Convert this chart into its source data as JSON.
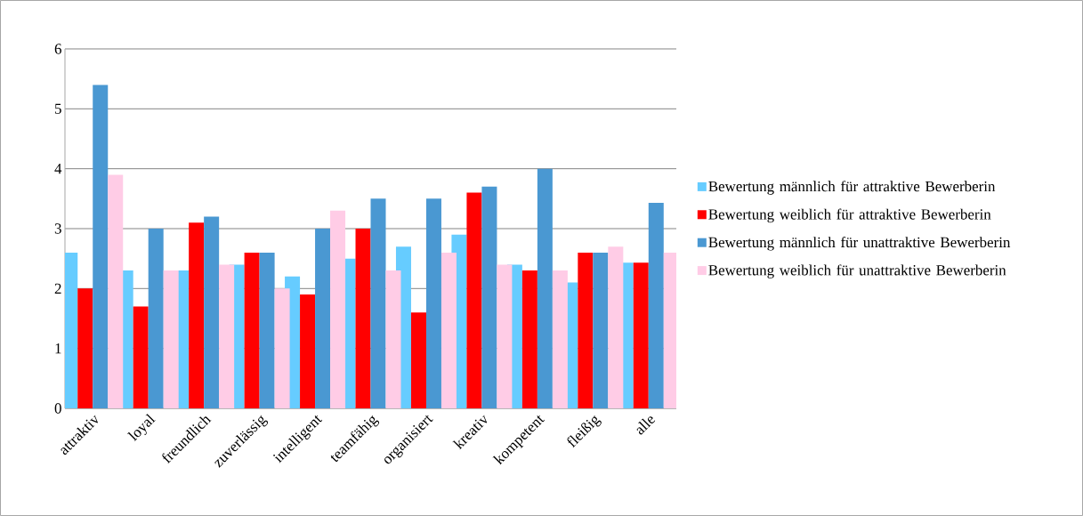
{
  "chart_data": {
    "type": "bar",
    "categories": [
      "attraktiv",
      "loyal",
      "freundlich",
      "zuverlässig",
      "intelligent",
      "teamfähig",
      "organisiert",
      "kreativ",
      "kompetent",
      "fleißig",
      "alle"
    ],
    "series": [
      {
        "name": "Bewertung männlich für attraktive Bewerberin",
        "color": "#66ccff",
        "values": [
          2.6,
          2.3,
          2.3,
          2.4,
          2.2,
          2.5,
          2.7,
          2.9,
          2.4,
          2.1,
          2.43
        ]
      },
      {
        "name": "Bewertung weiblich für attraktive Bewerberin",
        "color": "#ff0000",
        "values": [
          2.0,
          1.7,
          3.1,
          2.6,
          1.9,
          3.0,
          1.6,
          3.6,
          2.3,
          2.6,
          2.43
        ]
      },
      {
        "name": "Bewertung männlich für unattraktive Bewerberin",
        "color": "#4a98d2",
        "values": [
          5.4,
          3.0,
          3.2,
          2.6,
          3.0,
          3.5,
          3.5,
          3.7,
          4.0,
          2.6,
          3.43
        ]
      },
      {
        "name": "Bewertung weiblich für unattraktive Bewerberin",
        "color": "#ffcce6",
        "values": [
          3.9,
          2.3,
          2.4,
          2.0,
          3.3,
          2.3,
          2.6,
          2.4,
          2.3,
          2.7,
          2.6
        ]
      }
    ],
    "ylim": [
      0,
      6
    ],
    "yticks": [
      0,
      1,
      2,
      3,
      4,
      5,
      6
    ],
    "grid": "y",
    "legend": "right"
  }
}
